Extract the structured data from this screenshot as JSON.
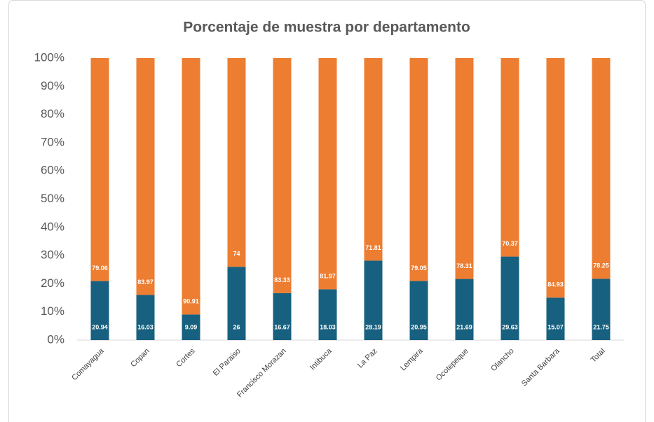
{
  "chart_data": {
    "type": "stacked_bar_100",
    "title": "Porcentaje de muestra por departamento",
    "categories": [
      "Comayagua",
      "Copan",
      "Cortes",
      "El Paraiso",
      "Francisco Morazan",
      "Intibuca",
      "La Paz",
      "Lempira",
      "Ocotepeque",
      "Olancho",
      "Santa Barbara",
      "Total"
    ],
    "series": [
      {
        "color": "#17607f",
        "values": [
          20.94,
          16.03,
          9.09,
          26,
          16.67,
          18.03,
          28.19,
          20.95,
          21.69,
          29.63,
          15.07,
          21.75
        ]
      },
      {
        "color": "#ed7d31",
        "values": [
          79.06,
          83.97,
          90.91,
          74,
          83.33,
          81.97,
          71.81,
          79.05,
          78.31,
          70.37,
          84.93,
          78.25
        ]
      }
    ],
    "ylim": [
      0,
      100
    ],
    "yticks": [
      {
        "value": 0,
        "label": "0%"
      },
      {
        "value": 10,
        "label": "10%"
      },
      {
        "value": 20,
        "label": "20%"
      },
      {
        "value": 30,
        "label": "30%"
      },
      {
        "value": 40,
        "label": "40%"
      },
      {
        "value": 50,
        "label": "50%"
      },
      {
        "value": 60,
        "label": "60%"
      },
      {
        "value": 70,
        "label": "70%"
      },
      {
        "value": 80,
        "label": "80%"
      },
      {
        "value": 90,
        "label": "90%"
      },
      {
        "value": 100,
        "label": "100%"
      }
    ],
    "grid": false
  }
}
